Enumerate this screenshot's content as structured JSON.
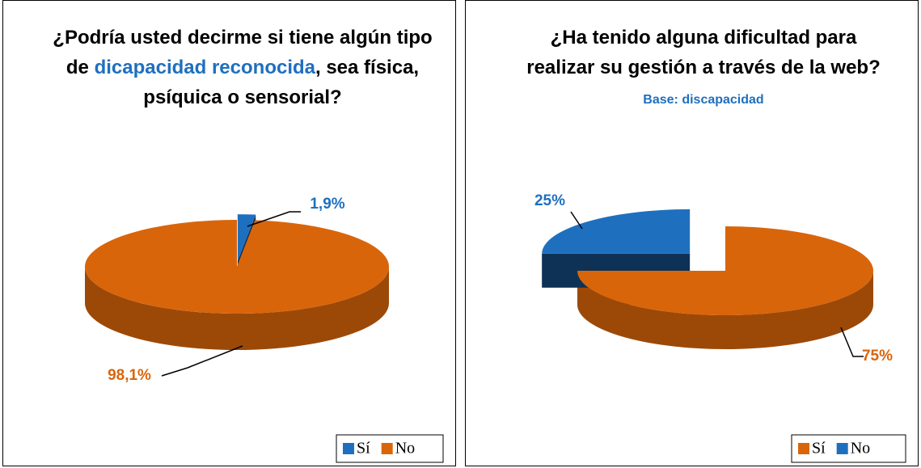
{
  "chart_data": [
    {
      "type": "pie",
      "title": [
        {
          "text": "¿Podría usted decirme si tiene algún tipo de "
        },
        {
          "text": "dicapacidad reconocida",
          "color": "#1f6fbf"
        },
        {
          "text": ", sea física, psíquica o sensorial?"
        }
      ],
      "categories": [
        "Sí",
        "No"
      ],
      "values": [
        1.9,
        98.1
      ],
      "value_labels": [
        "1,9%",
        "98,1%"
      ],
      "colors": [
        "#1f6fbf",
        "#d9650b"
      ],
      "legend": "bottom-right"
    },
    {
      "type": "pie",
      "title": [
        {
          "text": "¿Ha tenido alguna dificultad para realizar su gestión a través de la web?"
        }
      ],
      "subtitle": "Base: discapacidad",
      "categories": [
        "Sí",
        "No"
      ],
      "values": [
        75,
        25
      ],
      "value_labels": [
        "75%",
        "25%"
      ],
      "colors": [
        "#d9650b",
        "#1f6fbf"
      ],
      "legend": "bottom-right"
    }
  ]
}
